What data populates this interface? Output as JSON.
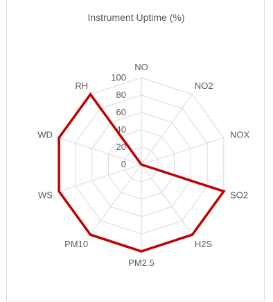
{
  "chart_data": {
    "type": "radar",
    "title": "Instrument Uptime (%)",
    "categories": [
      "NO",
      "NO2",
      "NOX",
      "SO2",
      "H2S",
      "PM2.5",
      "PM10",
      "WS",
      "WD",
      "RH"
    ],
    "radial_ticks": [
      "0",
      "20",
      "40",
      "60",
      "80",
      "100"
    ],
    "rlim": [
      0,
      100
    ],
    "series": [
      {
        "values": [
          0,
          0,
          0,
          100,
          100,
          100,
          100,
          100,
          100,
          100
        ]
      }
    ],
    "line_color": "#c00000",
    "grid_color": "#d9d9d9",
    "label_color": "#595959",
    "legend": "none"
  }
}
